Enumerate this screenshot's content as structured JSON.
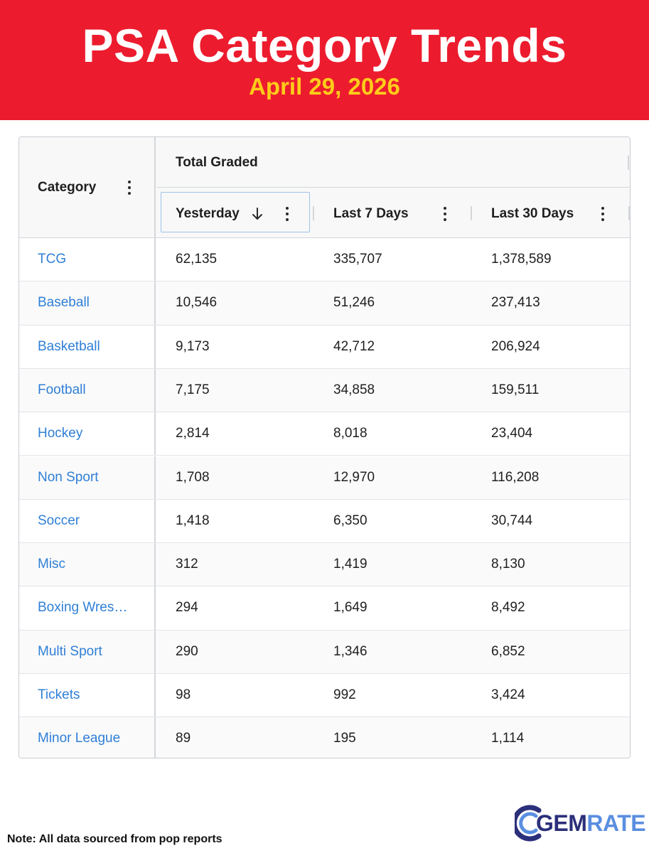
{
  "banner": {
    "title": "PSA Category Trends",
    "date": "April 29, 2026",
    "background_color": "#ec1c2e",
    "date_color": "#ffcc1a"
  },
  "table": {
    "category_header": "Category",
    "group_header": "Total Graded",
    "columns": [
      "Yesterday",
      "Last 7 Days",
      "Last 30 Days"
    ],
    "sort": {
      "column": "Yesterday",
      "direction": "descending",
      "icon": "arrow-down-icon"
    },
    "link_color": "#2f7fd6",
    "rows": [
      {
        "category": "TCG",
        "yesterday": "62,135",
        "last7": "335,707",
        "last30": "1,378,589"
      },
      {
        "category": "Baseball",
        "yesterday": "10,546",
        "last7": "51,246",
        "last30": "237,413"
      },
      {
        "category": "Basketball",
        "yesterday": "9,173",
        "last7": "42,712",
        "last30": "206,924"
      },
      {
        "category": "Football",
        "yesterday": "7,175",
        "last7": "34,858",
        "last30": "159,511"
      },
      {
        "category": "Hockey",
        "yesterday": "2,814",
        "last7": "8,018",
        "last30": "23,404"
      },
      {
        "category": "Non Sport",
        "yesterday": "1,708",
        "last7": "12,970",
        "last30": "116,208"
      },
      {
        "category": "Soccer",
        "yesterday": "1,418",
        "last7": "6,350",
        "last30": "30,744"
      },
      {
        "category": "Misc",
        "yesterday": "312",
        "last7": "1,419",
        "last30": "8,130"
      },
      {
        "category": "Boxing Wres…",
        "yesterday": "294",
        "last7": "1,649",
        "last30": "8,492"
      },
      {
        "category": "Multi Sport",
        "yesterday": "290",
        "last7": "1,346",
        "last30": "6,852"
      },
      {
        "category": "Tickets",
        "yesterday": "98",
        "last7": "992",
        "last30": "3,424"
      },
      {
        "category": "Minor League",
        "yesterday": "89",
        "last7": "195",
        "last30": "1,114"
      }
    ]
  },
  "footer": {
    "note": "Note: All data sourced from pop reports",
    "logo_gem": "GEM",
    "logo_rate": "RATE",
    "logo_icon": "gemrate-c-logo-icon"
  }
}
